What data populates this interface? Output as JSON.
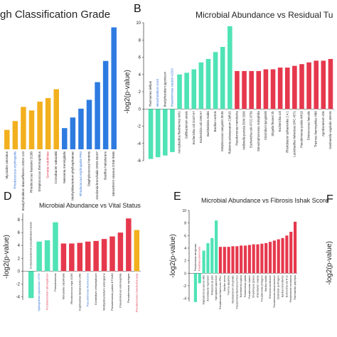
{
  "colors": {
    "teal": "#4fe3b5",
    "red": "#e6384d",
    "orange": "#f2b01e",
    "blue": "#2d7be0",
    "axis": "#333333"
  },
  "panels": {
    "a": {
      "letter": "",
      "title": "gh Classification Grade"
    },
    "b": {
      "letter": "B",
      "title": "Microbial Abundance vs Residual Tu"
    },
    "d": {
      "letter": "D",
      "title": "Microbial Abundance vs Vital Status"
    },
    "e": {
      "letter": "E",
      "title": "Microbial Abundance vs Fibrosis Ishak Score"
    },
    "f": {
      "letter": "F"
    }
  },
  "chart_data": [
    {
      "panel": "A",
      "type": "bar",
      "title": "gh Classification Grade",
      "categories": [
        "Mycoides odoratus",
        "Rhodococcus erythropolis",
        "Bradyrhizobium diazoefficiens USDA 110",
        "Rhodococcus fascians D188",
        "Streptococcus thermophilus",
        "Serratia ruddehiae",
        "Cronobacter sakazakii",
        "Neisseria meningitidis",
        "Methylobacterium phyllosphaerae",
        "Rhodococcus erythropolis PR4",
        "Staphylococcus hominis",
        "Gordonia bronchialis DSM 43247",
        "Bacillus halodurans",
        "Mesotherm sivanus DSM 9946"
      ],
      "values": [
        1.1,
        1.6,
        2.4,
        2.2,
        2.7,
        2.9,
        3.4,
        1.2,
        1.8,
        2.3,
        2.8,
        3.8,
        5.0,
        6.9
      ],
      "colors": [
        "orange",
        "orange",
        "orange",
        "orange",
        "orange",
        "orange",
        "orange",
        "blue",
        "blue",
        "blue",
        "blue",
        "blue",
        "blue",
        "blue"
      ],
      "label_colors": [
        "black",
        "blue",
        "black",
        "black",
        "black",
        "red",
        "black",
        "black",
        "black",
        "blue",
        "black",
        "black",
        "black",
        "black"
      ],
      "ylim": [
        0,
        7
      ],
      "grid": false
    },
    {
      "panel": "B",
      "type": "bar",
      "title": "Microbial Abundance vs Residual Tu",
      "ylabel": "-log2(p-value)",
      "yticks": [
        -6,
        -4,
        -2,
        0,
        2,
        4,
        6,
        8,
        10
      ],
      "ylim": [
        -6,
        10
      ],
      "categories": [
        "Thermomes defluvii",
        "Mesorhizobium ciceri",
        "Bradyrhizobium japonicum",
        "Pseudomonas stutzeri A1501",
        "Anoxybacillus flavithermus WK1",
        "Gallibacterium anatis",
        "Escherichia coli O157:H7",
        "Escherichia coli O55:H7",
        "Burkholderia mallei",
        "Bacillus ruminis",
        "Streptococcus sanguinis SK36",
        "Ralstonia solanacearum CMR15",
        "Pseudomonas mendocina",
        "Veillonella parvula DSM 2008",
        "Escherichia coli ATCC 8739",
        "Stenotrophomonas maltophilia",
        "Clostridium ljungdahlii",
        "Shigella flexneri 2b",
        "Escherichia coli",
        "Rhodobacter sphaeroides 2.4.1",
        "Lactobacillus helveticus DPC 4571",
        "Pseudomonas putida W619",
        "Enterococcus faecalis",
        "Thermus thermophilus HB8",
        "Agrobacterium vitis",
        "Gardnerella vaginalis 409-05"
      ],
      "values": [
        -5.8,
        -5.6,
        -5.4,
        -5.0,
        4.0,
        4.2,
        4.6,
        5.4,
        5.8,
        6.6,
        7.2,
        9.6,
        4.4,
        4.4,
        4.4,
        4.4,
        4.6,
        4.6,
        4.8,
        4.8,
        5.0,
        5.2,
        5.4,
        5.6,
        5.6,
        5.8
      ],
      "colors": [
        "teal",
        "teal",
        "teal",
        "teal",
        "teal",
        "teal",
        "teal",
        "teal",
        "teal",
        "teal",
        "teal",
        "teal",
        "red",
        "red",
        "red",
        "red",
        "red",
        "red",
        "red",
        "red",
        "red",
        "red",
        "red",
        "red",
        "red",
        "red"
      ],
      "label_colors": [
        "black",
        "blue",
        "black",
        "blue",
        "black",
        "black",
        "black",
        "black",
        "black",
        "black",
        "black",
        "black",
        "black",
        "black",
        "black",
        "black",
        "black",
        "black",
        "black",
        "black",
        "black",
        "black",
        "black",
        "black",
        "black",
        "black"
      ],
      "grid": false
    },
    {
      "panel": "D",
      "type": "bar",
      "title": "Microbial Abundance vs Vital Status",
      "ylabel": "-log2(p-value)",
      "yticks": [
        -4,
        -2,
        0,
        2,
        4,
        6,
        8
      ],
      "ylim": [
        -4.5,
        9
      ],
      "categories": [
        "Corynebacterium pseudotuberculosis",
        "Sphingobium japonicum UT26",
        "Pectobacterium atrosepticum",
        "Pseudomonas",
        "Moraxella catarrhalis",
        "Rhodococcus equi 103S",
        "Cupriavidus taiwanensis LMG",
        "Pseudomonas fluorescens",
        "Clostridium cellulolyticum",
        "Methylobacterium extorquens",
        "Pseudomonas putida KT2440",
        "Pseudomonas entomophila",
        "Pseudomonas syringae",
        "Pseudomonas mendocina ymp"
      ],
      "values": [
        -4.2,
        4.6,
        4.8,
        7.6,
        4.3,
        4.3,
        4.4,
        4.6,
        4.7,
        5.0,
        5.4,
        6.0,
        8.2,
        6.4
      ],
      "colors": [
        "teal",
        "teal",
        "teal",
        "teal",
        "red",
        "red",
        "red",
        "red",
        "red",
        "red",
        "red",
        "red",
        "red",
        "orange"
      ],
      "label_colors": [
        "black",
        "blue",
        "red",
        "black",
        "black",
        "black",
        "black",
        "blue",
        "black",
        "black",
        "black",
        "black",
        "black",
        "red"
      ],
      "grid": false
    },
    {
      "panel": "E",
      "type": "bar",
      "title": "Microbial Abundance vs Fibrosis Ishak Score",
      "ylabel": "-log2(p-value)",
      "yticks": [
        -4,
        -2,
        0,
        2,
        4,
        6,
        8,
        10
      ],
      "ylim": [
        -4.5,
        10
      ],
      "categories": [
        "Pseudomonas aeruginosa",
        "Pandoraea pnomenusa",
        "Staphylococcus aureus JKD",
        "Acinetobacter baumannii",
        "Rhodococcus jostii",
        "Sphingobium japonicum",
        "Pseudomonas fluorescens Pf0-1",
        "Bacillus cereus",
        "Thermus aquaticus",
        "Mycobacterium smegmatis",
        "Pseudomonas fluorescens F113",
        "Burkholderia cepacia",
        "Pseudomonas putida",
        "Pseudomonas stutzeri",
        "Streptomyces griseus",
        "Enterobacter cloacae",
        "Pseudomonas protegens",
        "Bacillus subtilis",
        "Enterococcus faecium",
        "Pseudomonas brassicacearum",
        "Clostridium perfringens",
        "Bacillus licheniformis",
        "Escherichia coli K-12",
        "Pseudomonas mendocina",
        "Paenibacillus polymyxa"
      ],
      "values": [
        -4.6,
        -1.6,
        3.6,
        4.8,
        5.6,
        8.4,
        4.2,
        4.2,
        4.2,
        4.3,
        4.3,
        4.4,
        4.4,
        4.5,
        4.6,
        4.6,
        4.7,
        4.8,
        5.0,
        5.2,
        5.4,
        5.6,
        6.0,
        6.6,
        8.2
      ],
      "colors": [
        "teal",
        "teal",
        "teal",
        "teal",
        "teal",
        "teal",
        "red",
        "red",
        "red",
        "red",
        "red",
        "red",
        "red",
        "red",
        "red",
        "red",
        "red",
        "red",
        "red",
        "red",
        "red",
        "red",
        "red",
        "red",
        "red"
      ],
      "label_colors": [
        "black",
        "red",
        "black",
        "black",
        "black",
        "black",
        "black",
        "black",
        "black",
        "black",
        "black",
        "black",
        "black",
        "black",
        "black",
        "black",
        "black",
        "black",
        "black",
        "black",
        "black",
        "black",
        "black",
        "black",
        "black"
      ],
      "grid": false
    }
  ],
  "panel_f": {
    "ylabel": "-log2(p-value)"
  }
}
